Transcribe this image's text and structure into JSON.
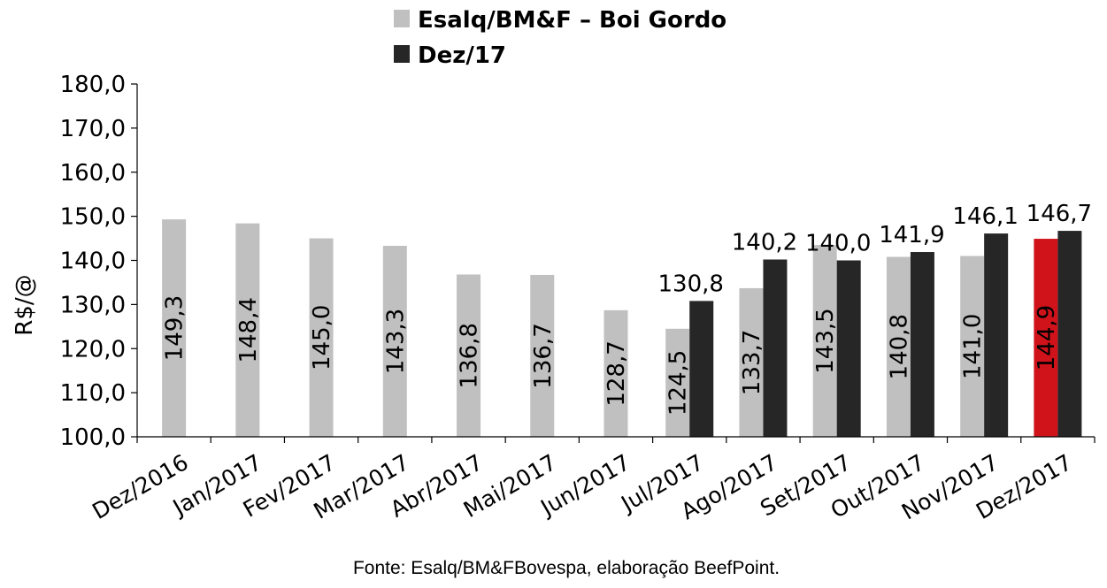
{
  "chart_data": {
    "type": "bar",
    "categories": [
      "Dez/2016",
      "Jan/2017",
      "Fev/2017",
      "Mar/2017",
      "Abr/2017",
      "Mai/2017",
      "Jun/2017",
      "Jul/2017",
      "Ago/2017",
      "Set/2017",
      "Out/2017",
      "Nov/2017",
      "Dez/2017"
    ],
    "series": [
      {
        "name": "Esalq/BM&F – Boi Gordo",
        "color": "#c0c0c0",
        "highlight_color": "#d0121b",
        "highlight_index": 12,
        "values": [
          149.3,
          148.4,
          145.0,
          143.3,
          136.8,
          136.7,
          128.7,
          124.5,
          133.7,
          143.5,
          140.8,
          141.0,
          144.9
        ],
        "labels": [
          "149,3",
          "148,4",
          "145,0",
          "143,3",
          "136,8",
          "136,7",
          "128,7",
          "124,5",
          "133,7",
          "143,5",
          "140,8",
          "141,0",
          "144,9"
        ]
      },
      {
        "name": "Dez/17",
        "color": "#262626",
        "values": [
          null,
          null,
          null,
          null,
          null,
          null,
          null,
          130.8,
          140.2,
          140.0,
          141.9,
          146.1,
          146.7
        ],
        "labels": [
          null,
          null,
          null,
          null,
          null,
          null,
          null,
          "130,8",
          "140,2",
          "140,0",
          "141,9",
          "146,1",
          "146,7"
        ]
      }
    ],
    "ylabel": "R$/@",
    "ylim": [
      100,
      180
    ],
    "yticks": [
      100,
      110,
      120,
      130,
      140,
      150,
      160,
      170,
      180
    ],
    "ytick_labels": [
      "100,0",
      "110,0",
      "120,0",
      "130,0",
      "140,0",
      "150,0",
      "160,0",
      "170,0",
      "180,0"
    ],
    "legend_position": "top-center",
    "grid": false
  },
  "source": "Fonte: Esalq/BM&FBovespa, elaboração BeefPoint."
}
